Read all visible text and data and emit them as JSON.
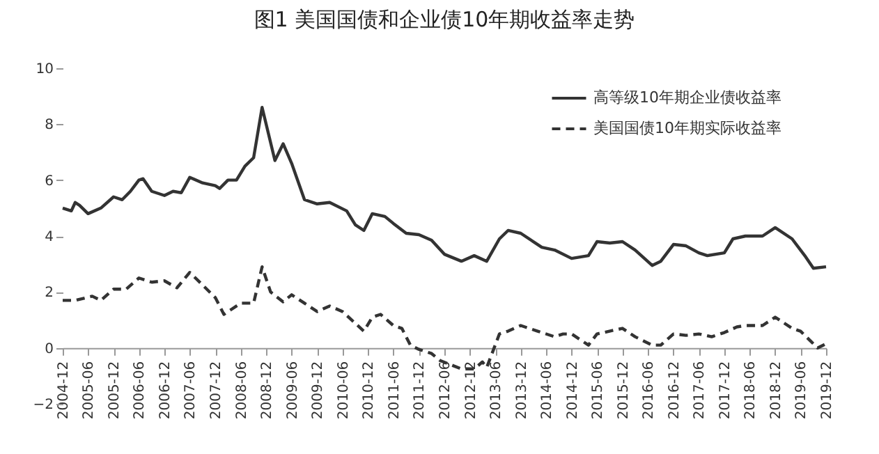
{
  "chart_data": {
    "type": "line",
    "title": "图1 美国国债和企业债10年期收益率走势",
    "xlim": [
      "2004-12",
      "2019-12"
    ],
    "xticks": [
      "2004-12",
      "2005-06",
      "2005-12",
      "2006-06",
      "2006-12",
      "2007-06",
      "2007-12",
      "2008-06",
      "2008-12",
      "2009-06",
      "2009-12",
      "2010-06",
      "2010-12",
      "2011-06",
      "2011-12",
      "2012-06",
      "2012-12",
      "2013-06",
      "2013-12",
      "2014-06",
      "2014-12",
      "2015-06",
      "2015-12",
      "2016-06",
      "2016-12",
      "2017-06",
      "2017-12",
      "2018-06",
      "2018-12",
      "2019-06",
      "2019-12"
    ],
    "ylim": [
      -2,
      10
    ],
    "yticks": [
      -2,
      0,
      2,
      4,
      6,
      8,
      10
    ],
    "grid": false,
    "legend": "top right",
    "marker": "none",
    "series": [
      {
        "name": "高等级10年期企业债收益率",
        "color": "#333333",
        "line_style": "solid",
        "x": [
          "2004-12",
          "2005-02",
          "2005-03",
          "2005-04",
          "2005-06",
          "2005-09",
          "2005-12",
          "2006-02",
          "2006-04",
          "2006-06",
          "2006-07",
          "2006-09",
          "2006-12",
          "2007-02",
          "2007-04",
          "2007-06",
          "2007-09",
          "2007-12",
          "2008-01",
          "2008-03",
          "2008-05",
          "2008-07",
          "2008-09",
          "2008-11",
          "2009-02",
          "2009-04",
          "2009-06",
          "2009-09",
          "2009-12",
          "2010-03",
          "2010-07",
          "2010-09",
          "2010-11",
          "2011-01",
          "2011-04",
          "2011-06",
          "2011-09",
          "2011-12",
          "2012-03",
          "2012-06",
          "2012-10",
          "2013-01",
          "2013-04",
          "2013-07",
          "2013-09",
          "2013-12",
          "2014-05",
          "2014-08",
          "2014-12",
          "2015-04",
          "2015-06",
          "2015-09",
          "2015-12",
          "2016-03",
          "2016-07",
          "2016-09",
          "2016-12",
          "2017-03",
          "2017-06",
          "2017-08",
          "2017-12",
          "2018-02",
          "2018-05",
          "2018-09",
          "2018-12",
          "2019-04",
          "2019-07",
          "2019-09",
          "2019-12"
        ],
        "values": [
          5.0,
          4.9,
          5.2,
          5.1,
          4.8,
          5.0,
          5.4,
          5.3,
          5.6,
          6.0,
          6.05,
          5.6,
          5.45,
          5.6,
          5.55,
          6.1,
          5.9,
          5.8,
          5.7,
          6.0,
          6.0,
          6.5,
          6.8,
          8.6,
          6.7,
          7.3,
          6.6,
          5.3,
          5.15,
          5.2,
          4.9,
          4.4,
          4.2,
          4.8,
          4.7,
          4.45,
          4.1,
          4.05,
          3.85,
          3.35,
          3.1,
          3.3,
          3.1,
          3.9,
          4.2,
          4.1,
          3.6,
          3.5,
          3.2,
          3.3,
          3.8,
          3.75,
          3.8,
          3.5,
          2.95,
          3.1,
          3.7,
          3.65,
          3.4,
          3.3,
          3.4,
          3.9,
          4.0,
          4.0,
          4.3,
          3.9,
          3.3,
          2.85,
          2.9
        ]
      },
      {
        "name": "美国国债10年期实际收益率",
        "color": "#333333",
        "line_style": "dashed",
        "x": [
          "2004-12",
          "2005-03",
          "2005-07",
          "2005-09",
          "2005-12",
          "2006-03",
          "2006-06",
          "2006-09",
          "2006-12",
          "2007-03",
          "2007-06",
          "2007-09",
          "2007-12",
          "2008-02",
          "2008-06",
          "2008-09",
          "2008-11",
          "2009-01",
          "2009-04",
          "2009-06",
          "2009-09",
          "2009-12",
          "2010-03",
          "2010-06",
          "2010-11",
          "2011-01",
          "2011-03",
          "2011-06",
          "2011-08",
          "2011-10",
          "2011-12",
          "2012-03",
          "2012-05",
          "2012-10",
          "2013-01",
          "2013-03",
          "2013-04",
          "2013-07",
          "2013-09",
          "2013-12",
          "2014-04",
          "2014-08",
          "2014-10",
          "2014-12",
          "2015-04",
          "2015-06",
          "2015-12",
          "2016-03",
          "2016-07",
          "2016-09",
          "2016-12",
          "2017-03",
          "2017-06",
          "2017-09",
          "2017-12",
          "2018-03",
          "2018-05",
          "2018-09",
          "2018-12",
          "2019-04",
          "2019-06",
          "2019-08",
          "2019-10",
          "2019-12"
        ],
        "values": [
          1.7,
          1.7,
          1.85,
          1.7,
          2.1,
          2.1,
          2.5,
          2.35,
          2.4,
          2.15,
          2.7,
          2.25,
          1.8,
          1.2,
          1.6,
          1.6,
          2.9,
          2.0,
          1.65,
          1.9,
          1.6,
          1.3,
          1.5,
          1.3,
          0.6,
          1.1,
          1.2,
          0.8,
          0.7,
          0.1,
          -0.05,
          -0.2,
          -0.45,
          -0.75,
          -0.75,
          -0.5,
          -0.7,
          0.5,
          0.6,
          0.8,
          0.6,
          0.4,
          0.5,
          0.5,
          0.1,
          0.5,
          0.7,
          0.4,
          0.1,
          0.1,
          0.5,
          0.45,
          0.5,
          0.4,
          0.55,
          0.75,
          0.8,
          0.8,
          1.1,
          0.7,
          0.6,
          0.3,
          0.0,
          0.15
        ]
      }
    ]
  }
}
